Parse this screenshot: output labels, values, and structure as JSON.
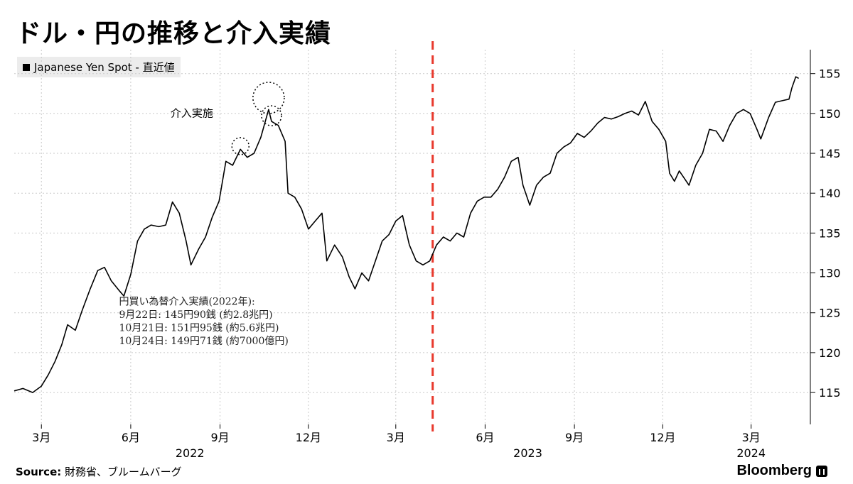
{
  "header": {
    "title": "ドル・円の推移と介入実績"
  },
  "legend": {
    "label": "Japanese Yen Spot - 直近値",
    "color": "#000000"
  },
  "footer": {
    "source_label": "Source:",
    "source_text": " 財務省、ブルームバーグ",
    "brand": "Bloomberg"
  },
  "chart_data": {
    "type": "line",
    "x_unit": "trading-day",
    "y_ticks": [
      115,
      120,
      125,
      130,
      135,
      140,
      145,
      150,
      155
    ],
    "ylim": [
      111,
      158
    ],
    "x_month_labels": [
      "3月",
      "6月",
      "9月",
      "12月",
      "3月",
      "6月",
      "9月",
      "12月",
      "3月"
    ],
    "x_month_dates": [
      "2022-03",
      "2022-06",
      "2022-09",
      "2022-12",
      "2023-03",
      "2023-06",
      "2023-09",
      "2023-12",
      "2024-03"
    ],
    "x_year_labels": [
      "2022",
      "2023",
      "2024"
    ],
    "grid": true,
    "legend_position": "top-left",
    "vline": {
      "date": "2023-04",
      "color": "#e8392d",
      "style": "dashed"
    },
    "annotation_label": "介入実施",
    "intervention_notes": [
      "円買い為替介入実績(2022年):",
      "9月22日:  145円90銭 (約2.8兆円)",
      "10月21日:  151円95銭 (約5.6兆円)",
      "10月24日:  149円71銭 (約7000億円)"
    ],
    "intervention_points": [
      {
        "date": "2022-09-22",
        "value": 145.9
      },
      {
        "date": "2022-10-21",
        "value": 151.95
      },
      {
        "date": "2022-10-24",
        "value": 149.71
      }
    ],
    "series": [
      {
        "color": "#000000",
        "points": [
          [
            "2022-02-01",
            115.2
          ],
          [
            "2022-02-10",
            115.5
          ],
          [
            "2022-02-20",
            115.0
          ],
          [
            "2022-03-01",
            115.8
          ],
          [
            "2022-03-08",
            117.2
          ],
          [
            "2022-03-15",
            118.9
          ],
          [
            "2022-03-22",
            121.0
          ],
          [
            "2022-03-28",
            123.5
          ],
          [
            "2022-04-05",
            122.8
          ],
          [
            "2022-04-12",
            125.3
          ],
          [
            "2022-04-20",
            127.9
          ],
          [
            "2022-04-28",
            130.3
          ],
          [
            "2022-05-05",
            130.7
          ],
          [
            "2022-05-12",
            129.0
          ],
          [
            "2022-05-20",
            127.8
          ],
          [
            "2022-05-25",
            127.1
          ],
          [
            "2022-06-01",
            129.8
          ],
          [
            "2022-06-08",
            134.0
          ],
          [
            "2022-06-15",
            135.5
          ],
          [
            "2022-06-22",
            136.0
          ],
          [
            "2022-06-30",
            135.8
          ],
          [
            "2022-07-07",
            136.0
          ],
          [
            "2022-07-14",
            138.9
          ],
          [
            "2022-07-21",
            137.5
          ],
          [
            "2022-07-28",
            134.0
          ],
          [
            "2022-08-02",
            131.0
          ],
          [
            "2022-08-10",
            133.0
          ],
          [
            "2022-08-17",
            134.5
          ],
          [
            "2022-08-24",
            137.0
          ],
          [
            "2022-08-31",
            139.0
          ],
          [
            "2022-09-07",
            144.0
          ],
          [
            "2022-09-14",
            143.5
          ],
          [
            "2022-09-22",
            145.5
          ],
          [
            "2022-09-29",
            144.5
          ],
          [
            "2022-10-06",
            145.0
          ],
          [
            "2022-10-13",
            147.0
          ],
          [
            "2022-10-21",
            150.5
          ],
          [
            "2022-10-24",
            149.0
          ],
          [
            "2022-10-31",
            148.5
          ],
          [
            "2022-11-07",
            146.5
          ],
          [
            "2022-11-10",
            140.0
          ],
          [
            "2022-11-17",
            139.5
          ],
          [
            "2022-11-24",
            138.0
          ],
          [
            "2022-12-01",
            135.5
          ],
          [
            "2022-12-08",
            136.5
          ],
          [
            "2022-12-15",
            137.5
          ],
          [
            "2022-12-20",
            131.5
          ],
          [
            "2022-12-28",
            133.5
          ],
          [
            "2023-01-05",
            132.0
          ],
          [
            "2023-01-12",
            129.5
          ],
          [
            "2023-01-18",
            128.0
          ],
          [
            "2023-01-25",
            130.0
          ],
          [
            "2023-02-01",
            129.0
          ],
          [
            "2023-02-08",
            131.5
          ],
          [
            "2023-02-15",
            134.0
          ],
          [
            "2023-02-22",
            134.8
          ],
          [
            "2023-03-01",
            136.5
          ],
          [
            "2023-03-08",
            137.2
          ],
          [
            "2023-03-15",
            133.5
          ],
          [
            "2023-03-22",
            131.5
          ],
          [
            "2023-03-29",
            131.0
          ],
          [
            "2023-04-05",
            131.5
          ],
          [
            "2023-04-12",
            133.5
          ],
          [
            "2023-04-19",
            134.5
          ],
          [
            "2023-04-26",
            134.0
          ],
          [
            "2023-05-03",
            135.0
          ],
          [
            "2023-05-10",
            134.5
          ],
          [
            "2023-05-17",
            137.5
          ],
          [
            "2023-05-24",
            139.0
          ],
          [
            "2023-05-31",
            139.5
          ],
          [
            "2023-06-07",
            139.5
          ],
          [
            "2023-06-14",
            140.5
          ],
          [
            "2023-06-21",
            142.0
          ],
          [
            "2023-06-28",
            144.0
          ],
          [
            "2023-07-05",
            144.5
          ],
          [
            "2023-07-10",
            141.0
          ],
          [
            "2023-07-17",
            138.5
          ],
          [
            "2023-07-24",
            141.0
          ],
          [
            "2023-07-31",
            142.0
          ],
          [
            "2023-08-07",
            142.5
          ],
          [
            "2023-08-14",
            145.0
          ],
          [
            "2023-08-21",
            145.8
          ],
          [
            "2023-08-28",
            146.3
          ],
          [
            "2023-09-04",
            147.5
          ],
          [
            "2023-09-11",
            147.0
          ],
          [
            "2023-09-18",
            147.8
          ],
          [
            "2023-09-25",
            148.8
          ],
          [
            "2023-10-02",
            149.5
          ],
          [
            "2023-10-09",
            149.3
          ],
          [
            "2023-10-16",
            149.6
          ],
          [
            "2023-10-23",
            150.0
          ],
          [
            "2023-10-30",
            150.3
          ],
          [
            "2023-11-06",
            149.8
          ],
          [
            "2023-11-13",
            151.5
          ],
          [
            "2023-11-20",
            149.0
          ],
          [
            "2023-11-27",
            148.0
          ],
          [
            "2023-12-04",
            146.5
          ],
          [
            "2023-12-08",
            142.5
          ],
          [
            "2023-12-13",
            141.5
          ],
          [
            "2023-12-18",
            142.8
          ],
          [
            "2023-12-28",
            141.0
          ],
          [
            "2024-01-04",
            143.5
          ],
          [
            "2024-01-11",
            145.0
          ],
          [
            "2024-01-18",
            148.0
          ],
          [
            "2024-01-25",
            147.8
          ],
          [
            "2024-02-01",
            146.5
          ],
          [
            "2024-02-08",
            148.5
          ],
          [
            "2024-02-15",
            150.0
          ],
          [
            "2024-02-22",
            150.5
          ],
          [
            "2024-02-29",
            150.0
          ],
          [
            "2024-03-07",
            148.0
          ],
          [
            "2024-03-11",
            146.8
          ],
          [
            "2024-03-19",
            149.5
          ],
          [
            "2024-03-26",
            151.4
          ],
          [
            "2024-04-02",
            151.6
          ],
          [
            "2024-04-09",
            151.8
          ],
          [
            "2024-04-12",
            153.2
          ],
          [
            "2024-04-16",
            154.6
          ],
          [
            "2024-04-19",
            154.4
          ]
        ]
      }
    ]
  }
}
